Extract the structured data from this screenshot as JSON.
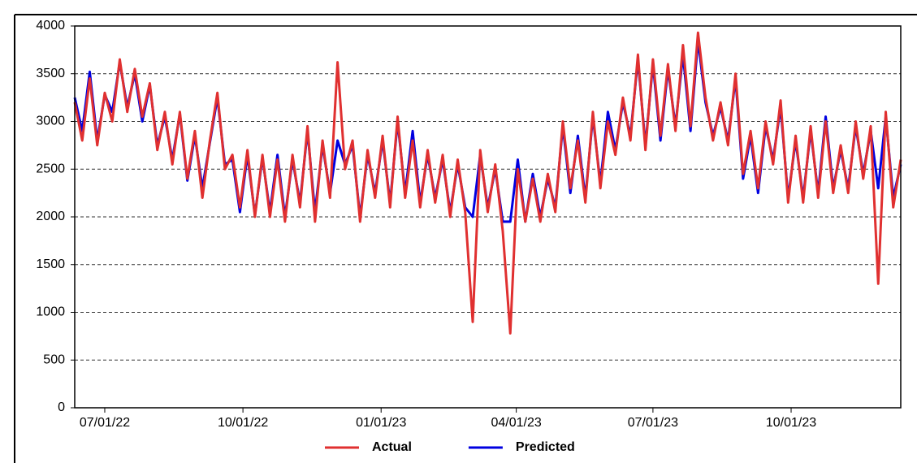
{
  "chart_data": {
    "type": "line",
    "x": [
      "06/11/22",
      "06/16/22",
      "06/21/22",
      "06/26/22",
      "07/01/22",
      "07/06/22",
      "07/11/22",
      "07/16/22",
      "07/21/22",
      "07/26/22",
      "07/31/22",
      "08/05/22",
      "08/10/22",
      "08/15/22",
      "08/20/22",
      "08/25/22",
      "08/30/22",
      "09/04/22",
      "09/09/22",
      "09/14/22",
      "09/19/22",
      "09/24/22",
      "09/29/22",
      "10/04/22",
      "10/09/22",
      "10/14/22",
      "10/19/22",
      "10/24/22",
      "10/29/22",
      "11/03/22",
      "11/08/22",
      "11/13/22",
      "11/18/22",
      "11/23/22",
      "11/28/22",
      "12/03/22",
      "12/08/22",
      "12/13/22",
      "12/18/22",
      "12/23/22",
      "12/28/22",
      "01/02/23",
      "01/07/23",
      "01/12/23",
      "01/17/23",
      "01/22/23",
      "01/27/23",
      "02/01/23",
      "02/06/23",
      "02/11/23",
      "02/16/23",
      "02/21/23",
      "02/26/23",
      "03/03/23",
      "03/08/23",
      "03/13/23",
      "03/18/23",
      "03/23/23",
      "03/28/23",
      "04/02/23",
      "04/07/23",
      "04/12/23",
      "04/17/23",
      "04/22/23",
      "04/27/23",
      "05/02/23",
      "05/07/23",
      "05/12/23",
      "05/17/23",
      "05/22/23",
      "05/27/23",
      "06/01/23",
      "06/06/23",
      "06/11/23",
      "06/16/23",
      "06/21/23",
      "06/26/23",
      "07/01/23",
      "07/06/23",
      "07/11/23",
      "07/16/23",
      "07/21/23",
      "07/26/23",
      "07/31/23",
      "08/05/23",
      "08/10/23",
      "08/15/23",
      "08/20/23",
      "08/25/23",
      "08/30/23",
      "09/04/23",
      "09/09/23",
      "09/14/23",
      "09/19/23",
      "09/24/23",
      "09/29/23",
      "10/04/23",
      "10/09/23",
      "10/14/23",
      "10/19/23",
      "10/24/23",
      "10/29/23",
      "11/03/23",
      "11/08/23",
      "11/13/23",
      "11/18/23",
      "11/23/23",
      "11/28/23",
      "12/03/23",
      "12/08/23",
      "12/13/23"
    ],
    "series": [
      {
        "name": "Predicted",
        "color": "#0000e0",
        "values": [
          3250,
          2900,
          3520,
          2800,
          3280,
          3100,
          3620,
          3150,
          3500,
          3000,
          3380,
          2750,
          3050,
          2600,
          3080,
          2380,
          2850,
          2300,
          2780,
          3250,
          2550,
          2600,
          2050,
          2650,
          2020,
          2620,
          2050,
          2650,
          2000,
          2600,
          2150,
          2900,
          2050,
          2750,
          2250,
          2800,
          2550,
          2750,
          2000,
          2650,
          2250,
          2800,
          2150,
          3000,
          2250,
          2900,
          2150,
          2650,
          2200,
          2600,
          2050,
          2550,
          2100,
          2000,
          2650,
          2100,
          2500,
          1950,
          1950,
          2600,
          1950,
          2450,
          2000,
          2400,
          2100,
          2950,
          2250,
          2850,
          2200,
          3050,
          2350,
          3100,
          2700,
          3200,
          2850,
          3650,
          2750,
          3600,
          2800,
          3550,
          2950,
          3700,
          2900,
          3850,
          3200,
          2850,
          3150,
          2800,
          3450,
          2400,
          2850,
          2250,
          2950,
          2600,
          3150,
          2200,
          2800,
          2200,
          2900,
          2250,
          3050,
          2300,
          2700,
          2300,
          2950,
          2450,
          2900,
          2300,
          3050,
          2200,
          2550
        ]
      },
      {
        "name": "Actual",
        "color": "#e03030",
        "values": [
          3200,
          2800,
          3450,
          2750,
          3300,
          3000,
          3650,
          3100,
          3550,
          3050,
          3400,
          2700,
          3100,
          2550,
          3100,
          2400,
          2900,
          2200,
          2800,
          3300,
          2500,
          2650,
          2100,
          2700,
          2000,
          2650,
          2000,
          2600,
          1950,
          2650,
          2100,
          2950,
          1950,
          2800,
          2200,
          3620,
          2500,
          2800,
          1950,
          2700,
          2200,
          2850,
          2100,
          3050,
          2200,
          2800,
          2100,
          2700,
          2150,
          2650,
          2000,
          2600,
          2050,
          900,
          2700,
          2050,
          2550,
          1850,
          780,
          2500,
          1950,
          2400,
          1950,
          2450,
          2050,
          3000,
          2300,
          2800,
          2150,
          3100,
          2300,
          3000,
          2650,
          3250,
          2800,
          3700,
          2700,
          3650,
          2850,
          3600,
          2900,
          3800,
          2950,
          3930,
          3250,
          2800,
          3200,
          2750,
          3500,
          2450,
          2900,
          2300,
          3000,
          2550,
          3220,
          2150,
          2850,
          2150,
          2950,
          2200,
          3000,
          2250,
          2750,
          2250,
          3000,
          2400,
          2950,
          1300,
          3100,
          2100,
          2600
        ]
      }
    ],
    "xlim": [
      "06/11/22",
      "12/13/23"
    ],
    "xticks": [
      "07/01/22",
      "10/01/22",
      "01/01/23",
      "04/01/23",
      "07/01/23",
      "10/01/23"
    ],
    "ylim": [
      0,
      4000
    ],
    "yticks": [
      0,
      500,
      1000,
      1500,
      2000,
      2500,
      3000,
      3500,
      4000
    ],
    "grid": true
  }
}
